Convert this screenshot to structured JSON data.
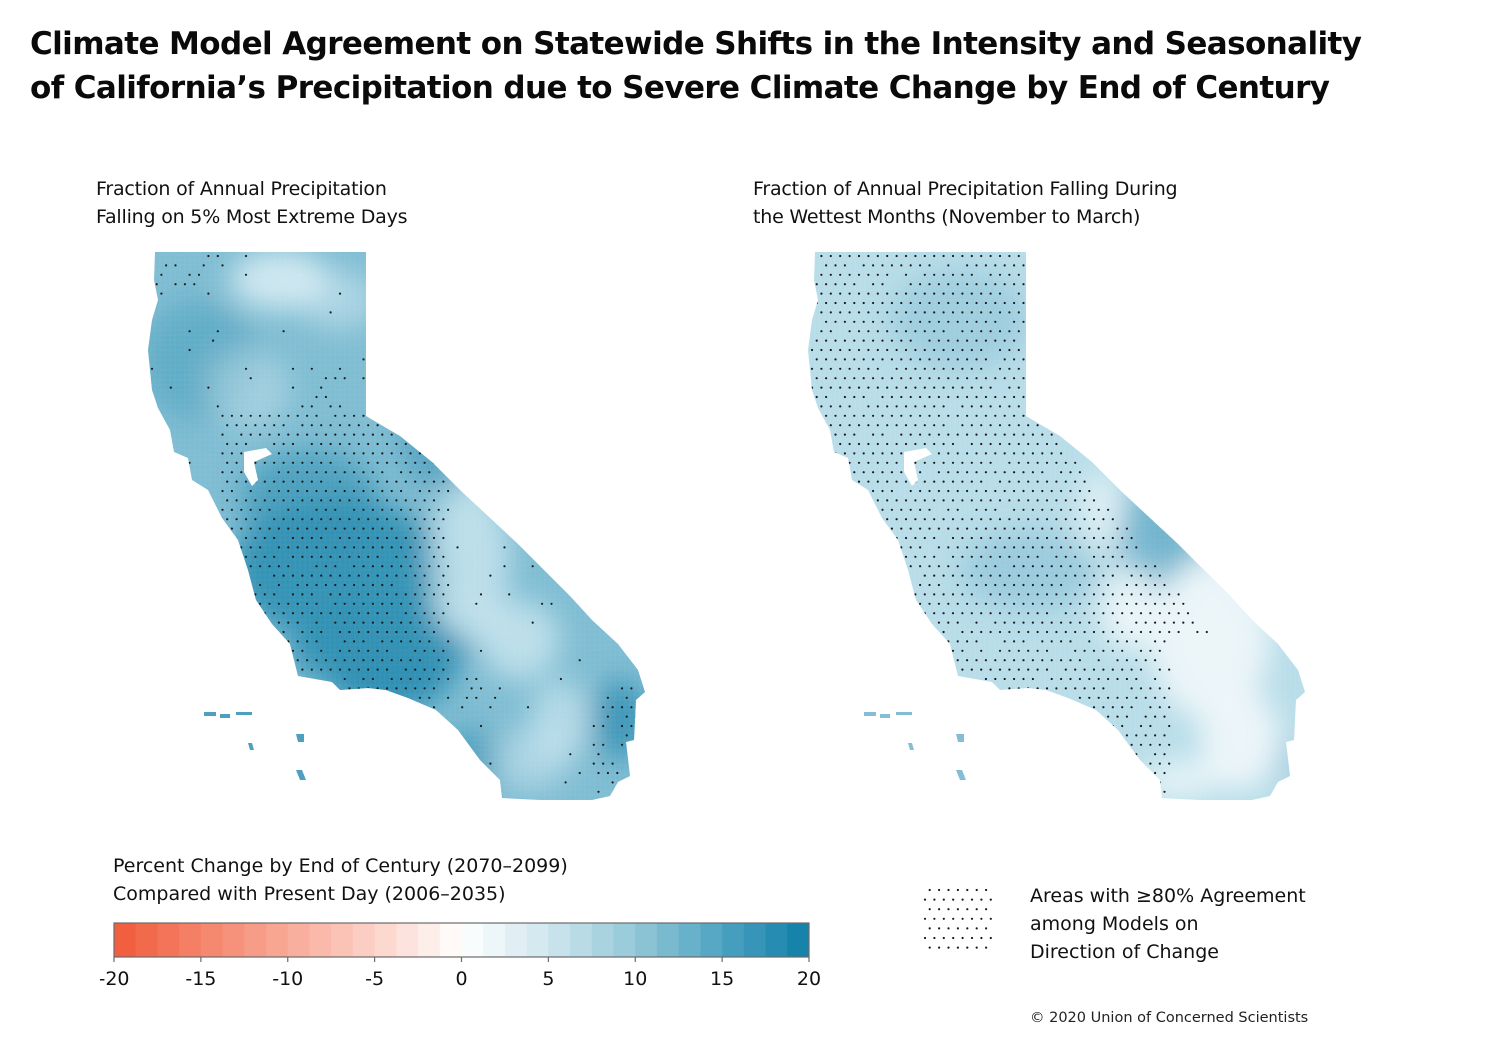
{
  "title": {
    "line1": "Climate Model Agreement on Statewide Shifts in the Intensity and Seasonality",
    "line2": "of California’s Precipitation due to Severe Climate Change by End of Century"
  },
  "panels": [
    {
      "id": "left",
      "title_line1": "Fraction of Annual Precipitation",
      "title_line2": "Falling on 5% Most Extreme Days",
      "base_color": "#7fbdd3",
      "dark_color": "#2f8fb3",
      "light_color": "#d6ecf3"
    },
    {
      "id": "right",
      "title_line1": "Fraction of Annual Precipitation Falling During",
      "title_line2": "the Wettest Months (November to March)",
      "base_color": "#b8dde9",
      "dark_color": "#6fb2cc",
      "light_color": "#eef7fa"
    }
  ],
  "colorbar": {
    "title_line1": "Percent Change by End of Century (2070–2099)",
    "title_line2": "Compared with Present Day (2006–2035)",
    "min": -20,
    "max": 20,
    "ticks": [
      "-20",
      "-15",
      "-10",
      "-5",
      "0",
      "5",
      "10",
      "15",
      "20"
    ],
    "tick_values": [
      -20,
      -15,
      -10,
      -5,
      0,
      5,
      10,
      15,
      20
    ],
    "stops": [
      {
        "value": -20,
        "color": "#f05a3a"
      },
      {
        "value": -15,
        "color": "#f4846a"
      },
      {
        "value": -10,
        "color": "#f8aa98"
      },
      {
        "value": -5,
        "color": "#fcd2c8"
      },
      {
        "value": 0,
        "color": "#ffffff"
      },
      {
        "value": 5,
        "color": "#cfe6ee"
      },
      {
        "value": 10,
        "color": "#94c8d8"
      },
      {
        "value": 15,
        "color": "#4ea3c1"
      },
      {
        "value": 20,
        "color": "#0e7ea8"
      }
    ]
  },
  "stipple_legend": {
    "line1": "Areas with ≥80% Agreement",
    "line2": "among Models on",
    "line3": "Direction of Change"
  },
  "copyright": "© 2020 Union of Concerned Scientists"
}
